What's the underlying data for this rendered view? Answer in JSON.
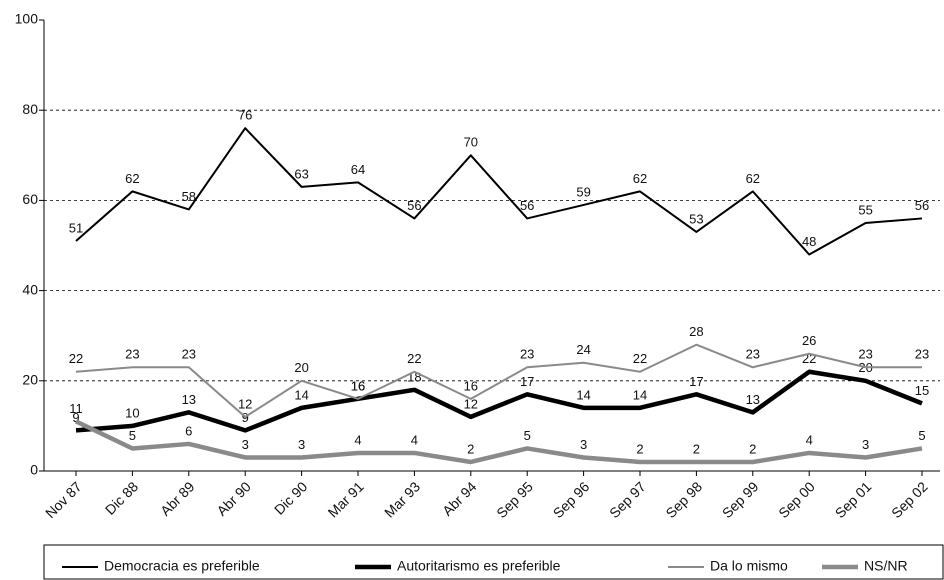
{
  "chart_data": {
    "type": "line",
    "categories": [
      "Nov 87",
      "Dic 88",
      "Abr 89",
      "Abr 90",
      "Dic 90",
      "Mar 91",
      "Mar 93",
      "Abr 94",
      "Sep 95",
      "Sep 96",
      "Sep 97",
      "Sep 98",
      "Sep 99",
      "Sep 00",
      "Sep 01",
      "Sep 02"
    ],
    "series": [
      {
        "name": "Democracia es preferible",
        "color": "#000000",
        "width": 2,
        "values": [
          51,
          62,
          58,
          76,
          63,
          64,
          56,
          70,
          56,
          59,
          62,
          53,
          62,
          48,
          55,
          56
        ]
      },
      {
        "name": "Autoritarismo es preferible",
        "color": "#000000",
        "width": 4.5,
        "values": [
          9,
          10,
          13,
          9,
          14,
          16,
          18,
          12,
          17,
          14,
          14,
          17,
          13,
          22,
          20,
          15
        ]
      },
      {
        "name": "Da lo mismo",
        "color": "#8a8a8a",
        "width": 2,
        "values": [
          22,
          23,
          23,
          12,
          20,
          16,
          22,
          16,
          23,
          24,
          22,
          28,
          23,
          26,
          23,
          23
        ]
      },
      {
        "name": "NS/NR",
        "color": "#8a8a8a",
        "width": 4.5,
        "values": [
          11,
          5,
          6,
          3,
          3,
          4,
          4,
          2,
          5,
          3,
          2,
          2,
          2,
          4,
          3,
          5
        ]
      }
    ],
    "ylim": [
      0,
      100
    ],
    "yticks": [
      0,
      20,
      40,
      60,
      80,
      100
    ],
    "grid": true
  }
}
